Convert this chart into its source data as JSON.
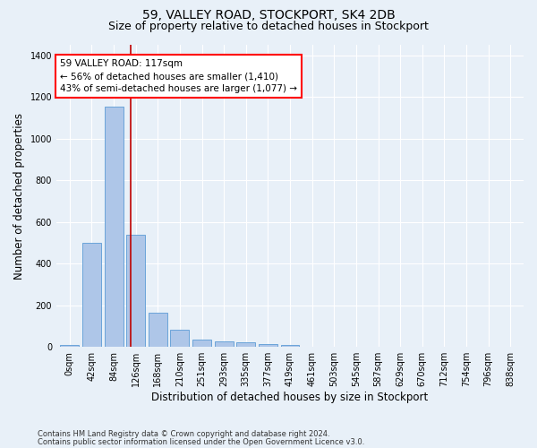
{
  "title": "59, VALLEY ROAD, STOCKPORT, SK4 2DB",
  "subtitle": "Size of property relative to detached houses in Stockport",
  "xlabel": "Distribution of detached houses by size in Stockport",
  "ylabel": "Number of detached properties",
  "footnote1": "Contains HM Land Registry data © Crown copyright and database right 2024.",
  "footnote2": "Contains public sector information licensed under the Open Government Licence v3.0.",
  "bar_labels": [
    "0sqm",
    "42sqm",
    "84sqm",
    "126sqm",
    "168sqm",
    "210sqm",
    "251sqm",
    "293sqm",
    "335sqm",
    "377sqm",
    "419sqm",
    "461sqm",
    "503sqm",
    "545sqm",
    "587sqm",
    "629sqm",
    "670sqm",
    "712sqm",
    "754sqm",
    "796sqm",
    "838sqm"
  ],
  "bar_values": [
    10,
    500,
    1155,
    540,
    163,
    83,
    35,
    28,
    22,
    13,
    10,
    0,
    0,
    0,
    0,
    0,
    0,
    0,
    0,
    0,
    0
  ],
  "bar_color": "#aec6e8",
  "bar_edge_color": "#5b9bd5",
  "property_line_x": 2.76,
  "property_line_color": "#c00000",
  "annotation_line1": "59 VALLEY ROAD: 117sqm",
  "annotation_line2": "← 56% of detached houses are smaller (1,410)",
  "annotation_line3": "43% of semi-detached houses are larger (1,077) →",
  "ylim": [
    0,
    1450
  ],
  "yticks": [
    0,
    200,
    400,
    600,
    800,
    1000,
    1200,
    1400
  ],
  "background_color": "#e8f0f8",
  "plot_bg_color": "#e8f0f8",
  "grid_color": "#ffffff",
  "title_fontsize": 10,
  "subtitle_fontsize": 9,
  "axis_label_fontsize": 8.5,
  "tick_fontsize": 7,
  "annotation_fontsize": 7.5,
  "footnote_fontsize": 6
}
